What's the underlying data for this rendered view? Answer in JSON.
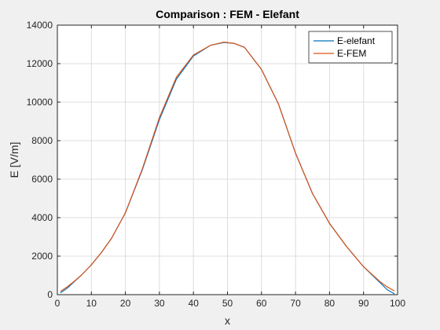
{
  "chart_data": {
    "type": "line",
    "title": "Comparison : FEM - Elefant",
    "xlabel": "x",
    "ylabel": "E [V/m]",
    "xlim": [
      0,
      100
    ],
    "ylim": [
      0,
      14000
    ],
    "xticks": [
      0,
      10,
      20,
      30,
      40,
      50,
      60,
      70,
      80,
      90,
      100
    ],
    "yticks": [
      0,
      2000,
      4000,
      6000,
      8000,
      10000,
      12000,
      14000
    ],
    "grid": true,
    "legend": "top-right",
    "x": [
      1,
      3,
      5,
      7,
      10,
      13,
      16,
      20,
      25,
      30,
      35,
      40,
      45,
      49,
      52,
      55,
      60,
      65,
      70,
      75,
      80,
      85,
      90,
      95,
      97,
      99
    ],
    "series": [
      {
        "name": "E-elefant",
        "color": "#0072BD",
        "values": [
          100,
          350,
          680,
          1000,
          1550,
          2200,
          2950,
          4250,
          6500,
          9100,
          11200,
          12400,
          12950,
          13100,
          13050,
          12850,
          11700,
          9900,
          7350,
          5250,
          3700,
          2500,
          1450,
          600,
          250,
          50
        ]
      },
      {
        "name": "E-FEM",
        "color": "#D95319",
        "values": [
          180,
          420,
          700,
          1000,
          1550,
          2200,
          2950,
          4250,
          6550,
          9200,
          11300,
          12450,
          12950,
          13120,
          13050,
          12850,
          11700,
          9900,
          7350,
          5250,
          3700,
          2500,
          1450,
          650,
          400,
          200
        ]
      }
    ]
  }
}
